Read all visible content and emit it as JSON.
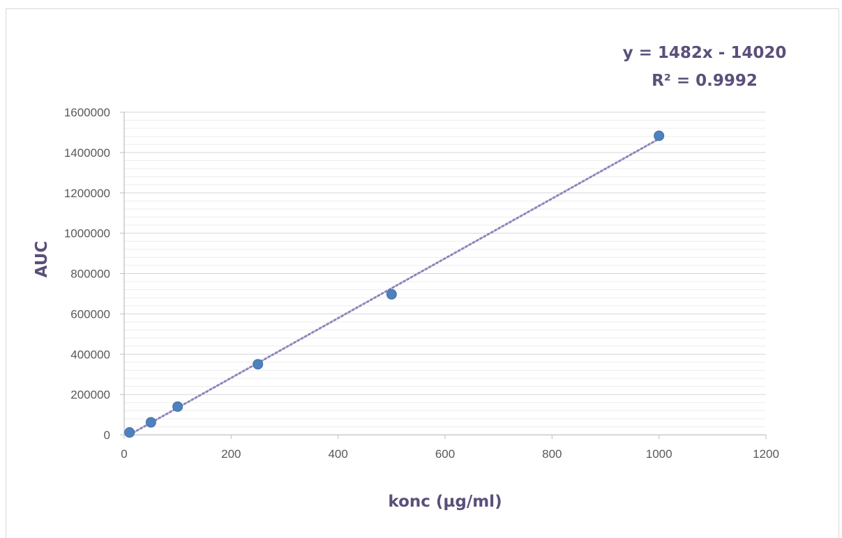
{
  "chart_data": {
    "type": "scatter",
    "title": "",
    "xlabel": "konc (µg/ml)",
    "ylabel": "AUC",
    "xlim": [
      0,
      1200
    ],
    "ylim": [
      0,
      1600000
    ],
    "x_ticks": [
      0,
      200,
      400,
      600,
      800,
      1000,
      1200
    ],
    "y_ticks": [
      0,
      200000,
      400000,
      600000,
      800000,
      1000000,
      1200000,
      1400000,
      1600000
    ],
    "x_tick_labels": [
      "0",
      "200",
      "400",
      "600",
      "800",
      "1000",
      "1200"
    ],
    "y_tick_labels": [
      "0",
      "200000",
      "400000",
      "600000",
      "800000",
      "1000000",
      "1200000",
      "1400000",
      "1600000"
    ],
    "grid": "horizontal major and minor",
    "legend": "none",
    "series": [
      {
        "color": "#4f81bd",
        "points": [
          {
            "x": 10,
            "y": 12000
          },
          {
            "x": 50,
            "y": 62000
          },
          {
            "x": 100,
            "y": 140000
          },
          {
            "x": 250,
            "y": 350000
          },
          {
            "x": 500,
            "y": 697000
          },
          {
            "x": 1000,
            "y": 1483000
          }
        ]
      }
    ],
    "trendline": {
      "type": "linear",
      "slope": 1482,
      "intercept": -14020,
      "style": "dotted",
      "color": "#8e86bd",
      "equation": "y = 1482x - 14020",
      "r_squared": "R² = 0.9992"
    }
  }
}
